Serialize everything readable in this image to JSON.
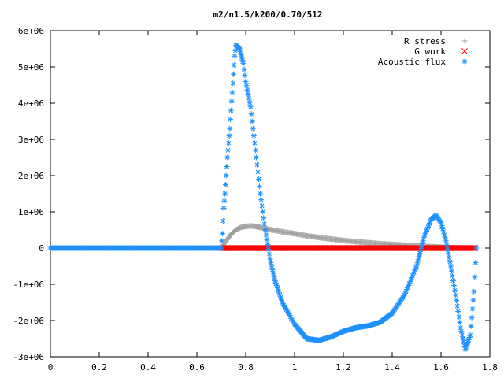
{
  "chart_data": {
    "type": "scatter",
    "title": "m2/n1.5/k200/0.70/512",
    "xlim": [
      0,
      1.8
    ],
    "ylim": [
      -3000000,
      6000000
    ],
    "x_ticks": [
      0,
      0.2,
      0.4,
      0.6,
      0.8,
      1,
      1.2,
      1.4,
      1.6,
      1.8
    ],
    "x_tick_labels": [
      "0",
      "0.2",
      "0.4",
      "0.6",
      "0.8",
      "1",
      "1.2",
      "1.4",
      "1.6",
      "1.8"
    ],
    "y_ticks": [
      -3000000,
      -2000000,
      -1000000,
      0,
      1000000,
      2000000,
      3000000,
      4000000,
      5000000,
      6000000
    ],
    "y_tick_labels": [
      "-3e+06",
      "-2e+06",
      "-1e+06",
      "0",
      "1e+06",
      "2e+06",
      "3e+06",
      "4e+06",
      "5e+06",
      "6e+06"
    ],
    "grid": false,
    "legend_position": "top-right",
    "series": [
      {
        "name": "R stress",
        "marker": "+",
        "color": "#a0a0a0",
        "points": [
          [
            0.7,
            0
          ],
          [
            0.72,
            200000
          ],
          [
            0.74,
            380000
          ],
          [
            0.76,
            500000
          ],
          [
            0.78,
            570000
          ],
          [
            0.8,
            600000
          ],
          [
            0.82,
            610000
          ],
          [
            0.84,
            600000
          ],
          [
            0.86,
            570000
          ],
          [
            0.9,
            510000
          ],
          [
            0.95,
            450000
          ],
          [
            1.0,
            400000
          ],
          [
            1.05,
            340000
          ],
          [
            1.1,
            290000
          ],
          [
            1.15,
            250000
          ],
          [
            1.2,
            210000
          ],
          [
            1.25,
            180000
          ],
          [
            1.3,
            150000
          ],
          [
            1.35,
            120000
          ],
          [
            1.4,
            100000
          ],
          [
            1.45,
            80000
          ],
          [
            1.5,
            60000
          ],
          [
            1.55,
            40000
          ],
          [
            1.6,
            25000
          ],
          [
            1.65,
            10000
          ],
          [
            1.7,
            0
          ]
        ]
      },
      {
        "name": "G work",
        "marker": "x",
        "color": "#ff0000",
        "points": [
          [
            0.7,
            0
          ],
          [
            0.85,
            0
          ],
          [
            1.0,
            0
          ],
          [
            1.2,
            0
          ],
          [
            1.4,
            0
          ],
          [
            1.6,
            0
          ],
          [
            1.74,
            0
          ]
        ]
      },
      {
        "name": "Acoustic flux",
        "marker": "*",
        "color": "#1e90ff",
        "points": [
          [
            0,
            0
          ],
          [
            0.2,
            0
          ],
          [
            0.4,
            0
          ],
          [
            0.6,
            0
          ],
          [
            0.7,
            0
          ],
          [
            0.705,
            400000
          ],
          [
            0.71,
            1100000
          ],
          [
            0.715,
            1500000
          ],
          [
            0.72,
            2000000
          ],
          [
            0.725,
            2500000
          ],
          [
            0.73,
            2900000
          ],
          [
            0.735,
            3300000
          ],
          [
            0.74,
            3800000
          ],
          [
            0.745,
            4300000
          ],
          [
            0.75,
            4800000
          ],
          [
            0.755,
            5300000
          ],
          [
            0.76,
            5600000
          ],
          [
            0.775,
            5500000
          ],
          [
            0.79,
            5100000
          ],
          [
            0.8,
            4600000
          ],
          [
            0.82,
            3900000
          ],
          [
            0.84,
            2700000
          ],
          [
            0.86,
            1500000
          ],
          [
            0.88,
            500000
          ],
          [
            0.9,
            -300000
          ],
          [
            0.92,
            -900000
          ],
          [
            0.95,
            -1500000
          ],
          [
            1.0,
            -2100000
          ],
          [
            1.05,
            -2500000
          ],
          [
            1.1,
            -2550000
          ],
          [
            1.15,
            -2450000
          ],
          [
            1.2,
            -2300000
          ],
          [
            1.25,
            -2200000
          ],
          [
            1.3,
            -2150000
          ],
          [
            1.35,
            -2050000
          ],
          [
            1.4,
            -1800000
          ],
          [
            1.45,
            -1300000
          ],
          [
            1.5,
            -500000
          ],
          [
            1.53,
            300000
          ],
          [
            1.56,
            800000
          ],
          [
            1.58,
            900000
          ],
          [
            1.6,
            700000
          ],
          [
            1.62,
            200000
          ],
          [
            1.64,
            -500000
          ],
          [
            1.66,
            -1300000
          ],
          [
            1.68,
            -2200000
          ],
          [
            1.7,
            -2800000
          ],
          [
            1.72,
            -2400000
          ],
          [
            1.735,
            -1200000
          ],
          [
            1.745,
            0
          ]
        ]
      }
    ]
  }
}
